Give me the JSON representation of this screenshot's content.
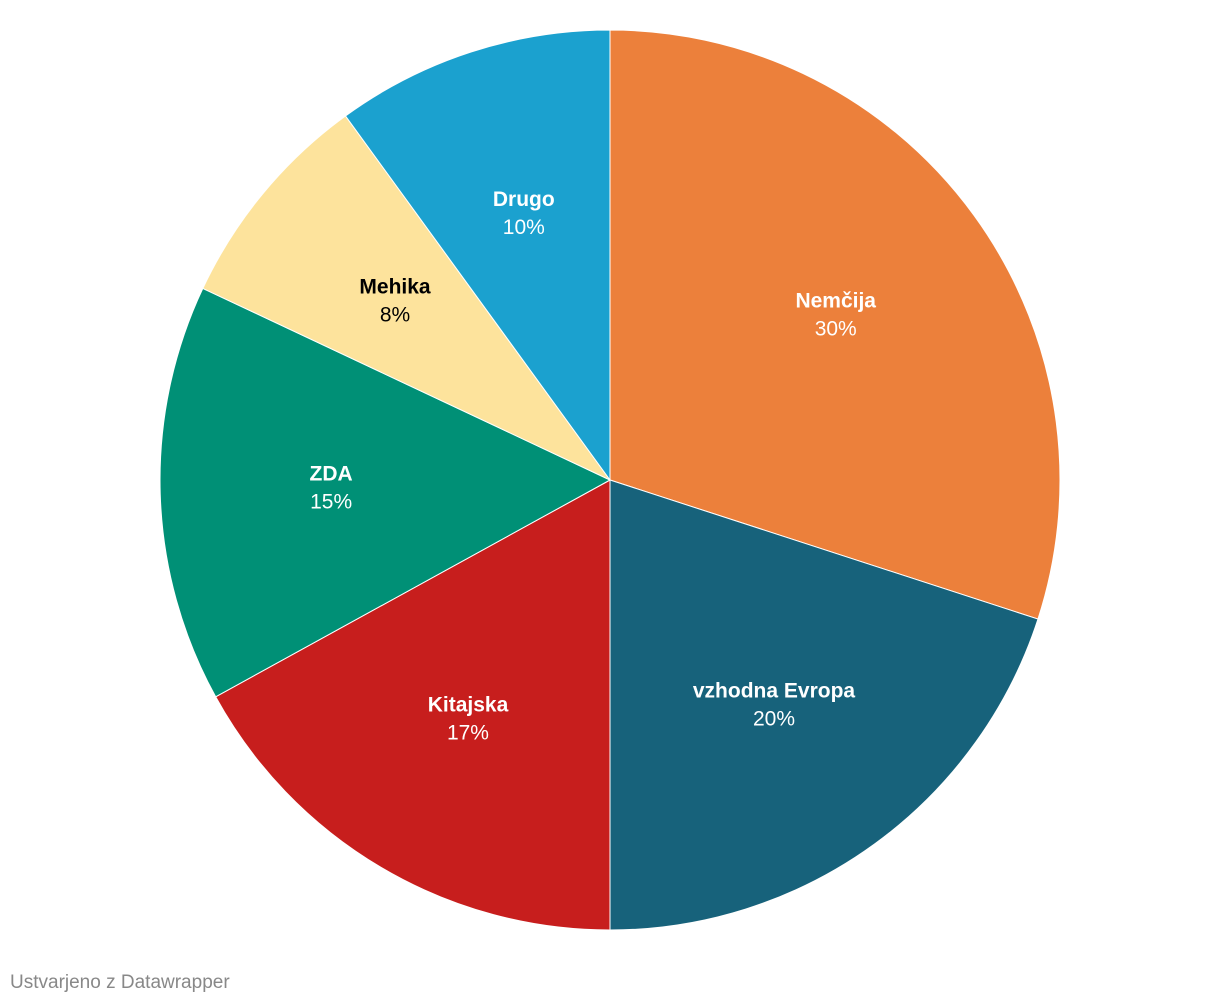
{
  "chart_data": {
    "type": "pie",
    "categories": [
      "Nemčija",
      "vzhodna Evropa",
      "Kitajska",
      "ZDA",
      "Mehika",
      "Drugo"
    ],
    "values": [
      30,
      20,
      17,
      15,
      8,
      10
    ],
    "value_labels": [
      "30%",
      "20%",
      "17%",
      "15%",
      "8%",
      "10%"
    ],
    "colors": [
      "#ec803b",
      "#17627b",
      "#c71e1d",
      "#009076",
      "#fde39c",
      "#1ba1cf"
    ],
    "credit": "Ustvarjeno z Datawrapper"
  }
}
